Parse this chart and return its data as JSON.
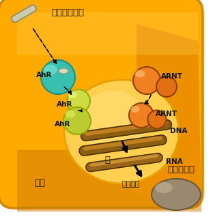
{
  "fig_width": 3.15,
  "fig_height": 3.18,
  "dpi": 100,
  "bg_color": "#ffffff",
  "cell_color": "#FFA500",
  "cell_dark": "#CC8800",
  "dioxin_label": "ダイオキシン",
  "dna_label": "DNA",
  "rna_label": "RNA",
  "transcription_label": "（転写）",
  "nucleus_text": "核",
  "cell_text": "細胞",
  "protein_label": "蛋白質合成",
  "ahr_teal_color": "#3ABFB0",
  "ahr_yg_color": "#CCDD44",
  "arnt_orange1": "#F08020",
  "arnt_orange2": "#DD7010",
  "dna_brown": "#8B5E10",
  "rna_brown": "#9B6518",
  "protein_brown": "#9B8870",
  "dioxin_capsule": "#CCCCAA",
  "arrow_color": "#000000",
  "text_color": "#111100"
}
